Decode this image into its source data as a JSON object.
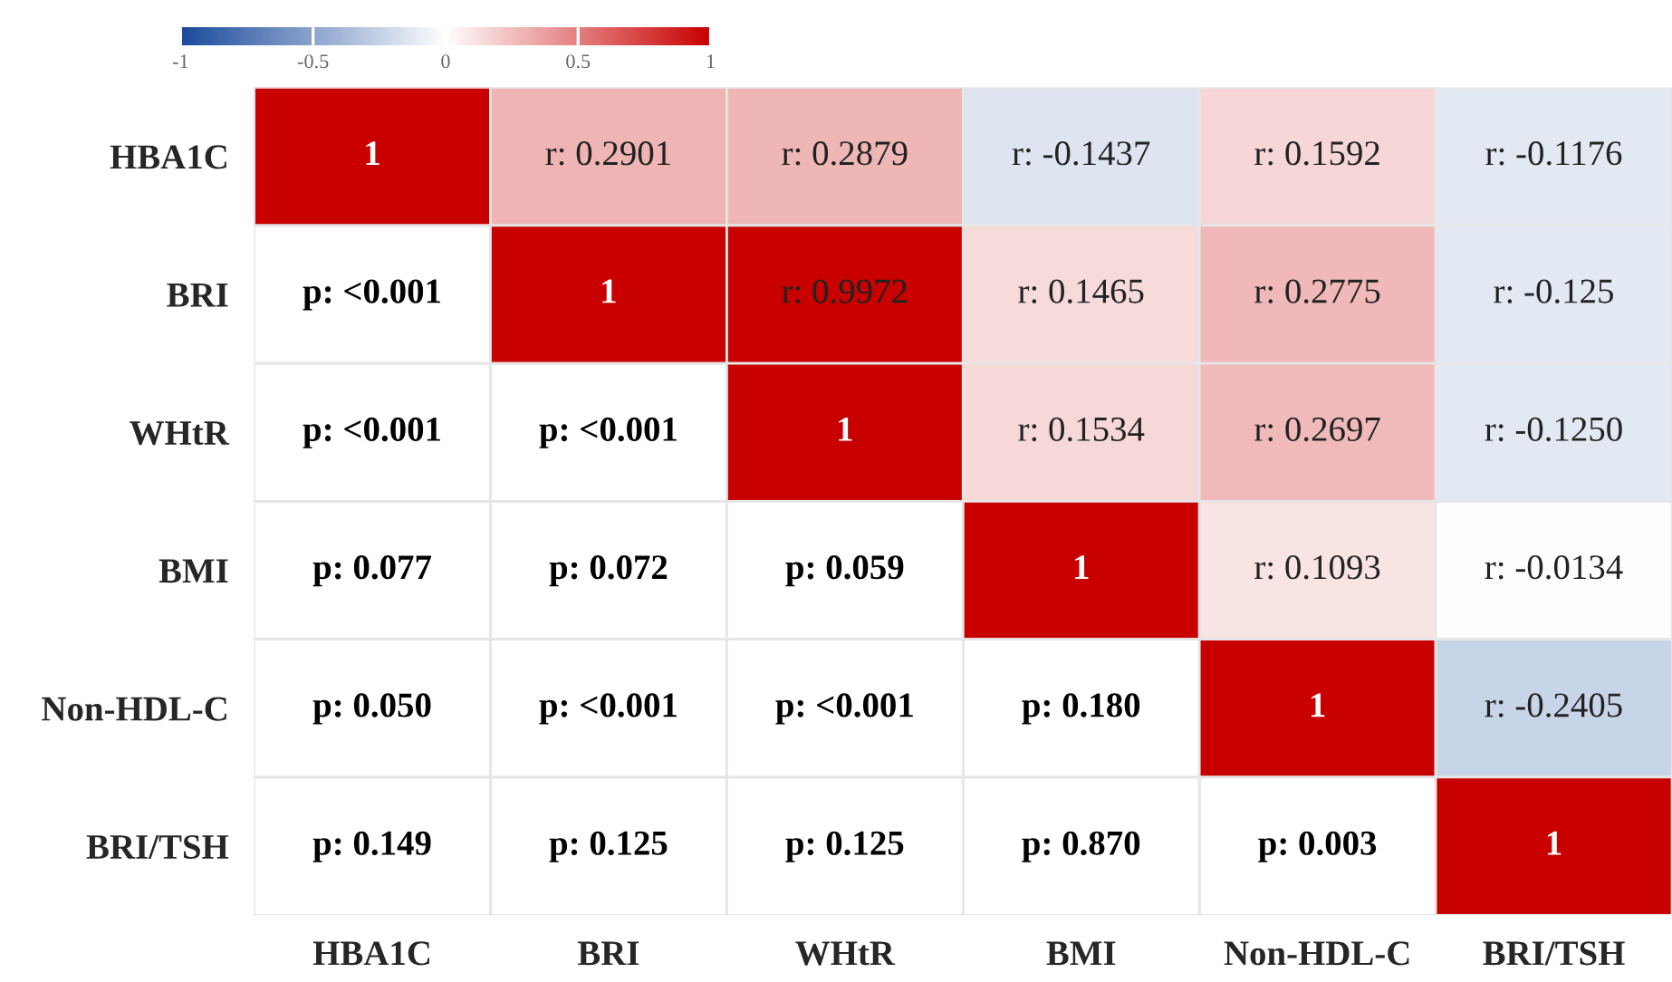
{
  "chart_data": {
    "type": "heatmap",
    "categories": [
      "HBA1C",
      "BRI",
      "WHtR",
      "BMI",
      "Non-HDL-C",
      "BRI/TSH"
    ],
    "y_categories": [
      "HBA1C",
      "BRI",
      "WHtR",
      "BMI",
      "Non-HDL-C",
      "BRI/TSH"
    ],
    "cells": [
      [
        1,
        0.2901,
        0.2879,
        -0.1437,
        0.1592,
        -0.1176
      ],
      [
        null,
        1,
        0.9972,
        0.1465,
        0.2775,
        -0.125
      ],
      [
        null,
        null,
        1,
        0.1534,
        0.2697,
        -0.125
      ],
      [
        null,
        null,
        null,
        1,
        0.1093,
        -0.0134
      ],
      [
        null,
        null,
        null,
        null,
        1,
        -0.2405
      ],
      [
        null,
        null,
        null,
        null,
        null,
        1
      ]
    ],
    "cell_labels": [
      [
        "1",
        "r: 0.2901",
        "r: 0.2879",
        "r: -0.1437",
        "r: 0.1592",
        "r: -0.1176"
      ],
      [
        "p: <0.001",
        "1",
        "r: 0.9972",
        "r: 0.1465",
        "r: 0.2775",
        "r: -0.125"
      ],
      [
        "p: <0.001",
        "p: <0.001",
        "1",
        "r: 0.1534",
        "r: 0.2697",
        "r: -0.1250"
      ],
      [
        "p: 0.077",
        "p: 0.072",
        "p: 0.059",
        "1",
        "r: 0.1093",
        "r: -0.0134"
      ],
      [
        "p: 0.050",
        "p: <0.001",
        "p: <0.001",
        "p: 0.180",
        "1",
        "r: -0.2405"
      ],
      [
        "p: 0.149",
        "p: 0.125",
        "p: 0.125",
        "p: 0.870",
        "p: 0.003",
        "1"
      ]
    ],
    "colors": [
      "#1a4a9c",
      "#ffffff",
      "#c80000"
    ],
    "clim": [
      -1,
      1
    ],
    "cticks": [
      -1,
      -0.5,
      0,
      0.5,
      1
    ]
  }
}
